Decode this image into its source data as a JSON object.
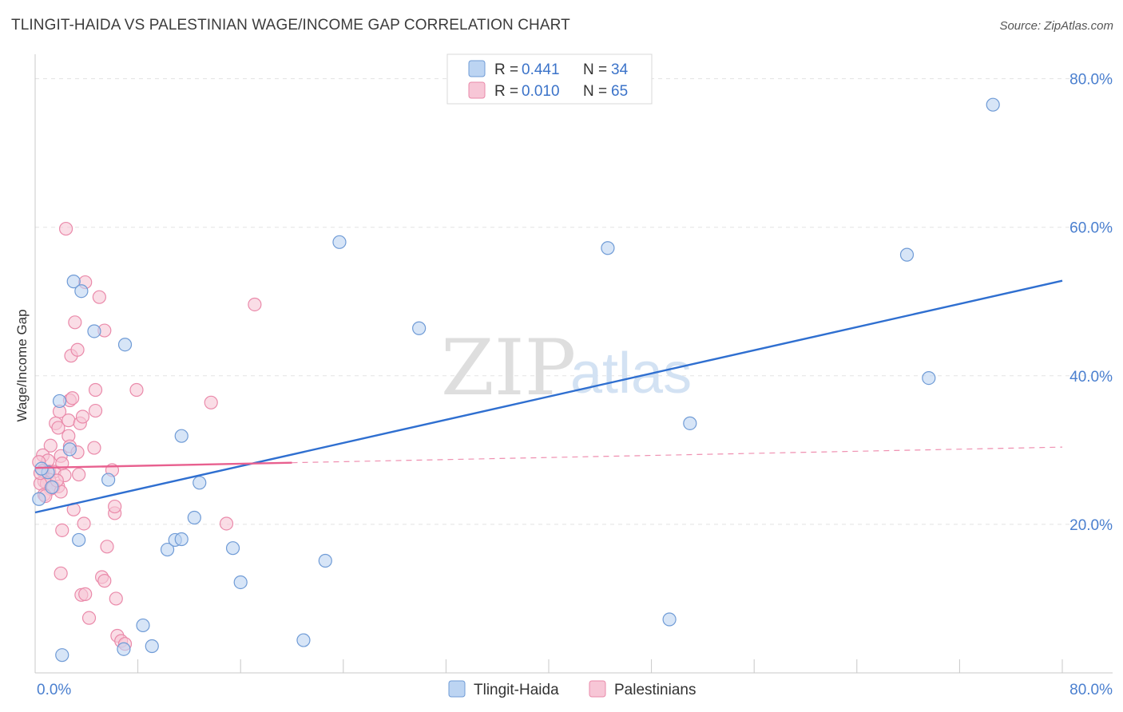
{
  "title": "TLINGIT-HAIDA VS PALESTINIAN WAGE/INCOME GAP CORRELATION CHART",
  "source": "Source: ZipAtlas.com",
  "watermark": {
    "zip": "ZIP",
    "atlas": "atlas"
  },
  "colors": {
    "blue_fill": "#bcd4f2",
    "blue_stroke": "#6f9bd6",
    "blue_line": "#2f6fd0",
    "pink_fill": "#f7c6d6",
    "pink_stroke": "#ea8aaa",
    "pink_line": "#e8608f",
    "grid": "#e3e3e3",
    "axis": "#c8c8c8"
  },
  "legend": {
    "rows": [
      {
        "r_label": "R =",
        "r_value": "0.441",
        "n_label": "N =",
        "n_value": "34",
        "series": "tlingit"
      },
      {
        "r_label": "R =",
        "r_value": "0.010",
        "n_label": "N =",
        "n_value": "65",
        "series": "palestinian"
      }
    ]
  },
  "bottom_legend": [
    "Tlingit-Haida",
    "Palestinians"
  ],
  "chart_data": {
    "type": "scatter",
    "title": "TLINGIT-HAIDA VS PALESTINIAN WAGE/INCOME GAP CORRELATION CHART",
    "xlabel": "",
    "ylabel": "Wage/Income Gap",
    "xlim": [
      0,
      80
    ],
    "ylim": [
      0,
      82
    ],
    "x_tick_labels": {
      "min": "0.0%",
      "max": "80.0%"
    },
    "y_ticks": [
      20,
      40,
      60,
      80
    ],
    "y_tick_labels": [
      "20.0%",
      "40.0%",
      "60.0%",
      "80.0%"
    ],
    "grid": true,
    "series": [
      {
        "name": "Tlingit-Haida",
        "color": "blue",
        "points": [
          [
            0.3,
            23.4
          ],
          [
            1.9,
            36.6
          ],
          [
            2.7,
            30.1
          ],
          [
            3.0,
            52.7
          ],
          [
            3.6,
            51.4
          ],
          [
            4.6,
            46.0
          ],
          [
            7.0,
            44.2
          ],
          [
            5.7,
            26.0
          ],
          [
            1.0,
            27.0
          ],
          [
            1.3,
            25.0
          ],
          [
            3.4,
            17.9
          ],
          [
            11.4,
            31.9
          ],
          [
            12.8,
            25.6
          ],
          [
            12.4,
            20.9
          ],
          [
            10.3,
            16.6
          ],
          [
            10.9,
            17.9
          ],
          [
            11.4,
            18.0
          ],
          [
            15.4,
            16.8
          ],
          [
            16.0,
            12.2
          ],
          [
            22.6,
            15.1
          ],
          [
            23.7,
            58.0
          ],
          [
            6.9,
            3.2
          ],
          [
            9.1,
            3.6
          ],
          [
            20.9,
            4.4
          ],
          [
            2.1,
            2.4
          ],
          [
            8.4,
            6.4
          ],
          [
            29.9,
            46.4
          ],
          [
            44.6,
            57.2
          ],
          [
            51.0,
            33.6
          ],
          [
            49.4,
            7.2
          ],
          [
            67.9,
            56.3
          ],
          [
            69.6,
            39.7
          ],
          [
            74.6,
            76.5
          ],
          [
            0.5,
            27.5
          ]
        ]
      },
      {
        "name": "Palestinians",
        "color": "pink",
        "points": [
          [
            2.4,
            59.8
          ],
          [
            3.9,
            52.6
          ],
          [
            5.0,
            50.6
          ],
          [
            3.1,
            47.2
          ],
          [
            5.4,
            46.1
          ],
          [
            17.1,
            49.6
          ],
          [
            2.8,
            42.7
          ],
          [
            3.3,
            43.5
          ],
          [
            7.9,
            38.1
          ],
          [
            4.7,
            38.1
          ],
          [
            2.7,
            36.7
          ],
          [
            2.9,
            37.0
          ],
          [
            4.7,
            35.3
          ],
          [
            1.9,
            35.2
          ],
          [
            2.6,
            34.0
          ],
          [
            13.7,
            36.4
          ],
          [
            1.6,
            33.6
          ],
          [
            1.8,
            33.0
          ],
          [
            3.5,
            33.6
          ],
          [
            3.7,
            34.5
          ],
          [
            1.2,
            30.6
          ],
          [
            2.6,
            31.9
          ],
          [
            2.7,
            30.5
          ],
          [
            4.6,
            30.3
          ],
          [
            3.3,
            29.7
          ],
          [
            2.0,
            29.2
          ],
          [
            0.6,
            29.3
          ],
          [
            1.0,
            28.6
          ],
          [
            0.3,
            28.4
          ],
          [
            1.1,
            27.1
          ],
          [
            0.6,
            27.2
          ],
          [
            1.5,
            27.1
          ],
          [
            6.0,
            27.3
          ],
          [
            1.1,
            26.0
          ],
          [
            0.7,
            25.8
          ],
          [
            0.9,
            25.5
          ],
          [
            1.8,
            25.1
          ],
          [
            1.2,
            24.8
          ],
          [
            1.4,
            25.0
          ],
          [
            2.0,
            24.4
          ],
          [
            0.4,
            25.5
          ],
          [
            2.3,
            26.6
          ],
          [
            3.4,
            26.7
          ],
          [
            0.7,
            24.0
          ],
          [
            3.0,
            22.0
          ],
          [
            6.2,
            21.5
          ],
          [
            6.2,
            22.4
          ],
          [
            14.9,
            20.1
          ],
          [
            3.8,
            20.1
          ],
          [
            2.1,
            19.2
          ],
          [
            5.6,
            17.0
          ],
          [
            2.0,
            13.4
          ],
          [
            5.2,
            12.9
          ],
          [
            5.4,
            12.4
          ],
          [
            3.6,
            10.5
          ],
          [
            3.9,
            10.6
          ],
          [
            6.3,
            10.0
          ],
          [
            4.2,
            7.4
          ],
          [
            6.4,
            5.0
          ],
          [
            6.7,
            4.3
          ],
          [
            7.0,
            3.9
          ],
          [
            0.4,
            26.9
          ],
          [
            1.7,
            25.9
          ],
          [
            0.8,
            23.8
          ],
          [
            2.1,
            28.2
          ]
        ]
      }
    ],
    "trend_lines": [
      {
        "series": "Tlingit-Haida",
        "style": "solid",
        "from": [
          0,
          21.6
        ],
        "to": [
          80,
          52.8
        ]
      },
      {
        "series": "Palestinians",
        "style": "solid",
        "from": [
          0,
          27.6
        ],
        "to": [
          20,
          28.3
        ]
      },
      {
        "series": "Palestinians",
        "style": "dashed",
        "from": [
          20,
          28.3
        ],
        "to": [
          80,
          30.4
        ]
      }
    ]
  }
}
